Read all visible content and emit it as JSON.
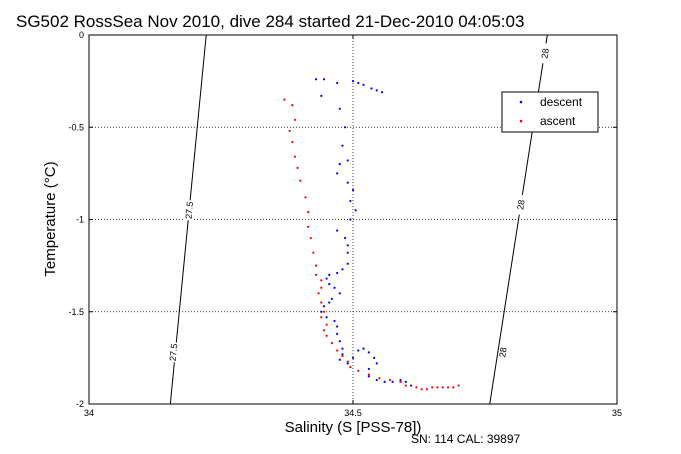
{
  "chart_data": {
    "type": "scatter",
    "title": "SG502 RossSea Nov 2010, dive 284 started 21-Dec-2010 04:05:03",
    "xlabel": "Salinity (S [PSS-78])",
    "ylabel": "Temperature (°C)",
    "xlim": [
      34,
      35
    ],
    "ylim": [
      -2,
      0
    ],
    "x_ticks": [
      34,
      34.5,
      35
    ],
    "y_ticks": [
      0,
      -0.5,
      -1,
      -1.5,
      -2
    ],
    "x_tick_labels": [
      "34",
      "34.5",
      "35"
    ],
    "y_tick_labels": [
      "0",
      "-0.5",
      "-1",
      "-1.5",
      "-2"
    ],
    "grid": true,
    "legend_position": "top-right",
    "footer": "SN: 114  CAL: 39897",
    "isopycnals": [
      {
        "label": "27.5",
        "x_at_ymax": 34.222,
        "x_at_ymin": 34.154,
        "label_positions": [
          [
            34.19,
            -0.95
          ],
          [
            34.16,
            -1.72
          ]
        ]
      },
      {
        "label": "28",
        "x_at_ymax": 34.868,
        "x_at_ymin": 34.759,
        "label_positions": [
          [
            34.864,
            -0.1
          ],
          [
            34.818,
            -0.92
          ],
          [
            34.784,
            -1.72
          ]
        ]
      }
    ],
    "series": [
      {
        "name": "descent",
        "color": "#0000ff",
        "points": [
          [
            34.43,
            -0.24
          ],
          [
            34.445,
            -0.24
          ],
          [
            34.44,
            -0.33
          ],
          [
            34.47,
            -0.26
          ],
          [
            34.5,
            -0.25
          ],
          [
            34.51,
            -0.26
          ],
          [
            34.52,
            -0.27
          ],
          [
            34.535,
            -0.29
          ],
          [
            34.545,
            -0.3
          ],
          [
            34.555,
            -0.31
          ],
          [
            34.475,
            -0.4
          ],
          [
            34.485,
            -0.5
          ],
          [
            34.48,
            -0.6
          ],
          [
            34.49,
            -0.68
          ],
          [
            34.475,
            -0.7
          ],
          [
            34.47,
            -0.75
          ],
          [
            34.49,
            -0.8
          ],
          [
            34.5,
            -0.84
          ],
          [
            34.495,
            -0.9
          ],
          [
            34.505,
            -0.95
          ],
          [
            34.495,
            -1.0
          ],
          [
            34.47,
            -1.06
          ],
          [
            34.485,
            -1.1
          ],
          [
            34.49,
            -1.14
          ],
          [
            34.49,
            -1.18
          ],
          [
            34.49,
            -1.24
          ],
          [
            34.48,
            -1.27
          ],
          [
            34.47,
            -1.29
          ],
          [
            34.455,
            -1.3
          ],
          [
            34.45,
            -1.32
          ],
          [
            34.455,
            -1.35
          ],
          [
            34.465,
            -1.37
          ],
          [
            34.475,
            -1.4
          ],
          [
            34.46,
            -1.43
          ],
          [
            34.455,
            -1.45
          ],
          [
            34.445,
            -1.47
          ],
          [
            34.44,
            -1.5
          ],
          [
            34.45,
            -1.53
          ],
          [
            34.465,
            -1.55
          ],
          [
            34.47,
            -1.58
          ],
          [
            34.47,
            -1.62
          ],
          [
            34.475,
            -1.66
          ],
          [
            34.48,
            -1.7
          ],
          [
            34.48,
            -1.73
          ],
          [
            34.475,
            -1.76
          ],
          [
            34.49,
            -1.78
          ],
          [
            34.5,
            -1.75
          ],
          [
            34.51,
            -1.71
          ],
          [
            34.52,
            -1.7
          ],
          [
            34.53,
            -1.72
          ],
          [
            34.54,
            -1.75
          ],
          [
            34.545,
            -1.78
          ],
          [
            34.53,
            -1.81
          ],
          [
            34.53,
            -1.85
          ],
          [
            34.545,
            -1.87
          ],
          [
            34.56,
            -1.88
          ],
          [
            34.575,
            -1.88
          ],
          [
            34.59,
            -1.87
          ],
          [
            34.6,
            -1.88
          ],
          [
            34.61,
            -1.9
          ]
        ]
      },
      {
        "name": "ascent",
        "color": "#ff0000",
        "points": [
          [
            34.37,
            -0.35
          ],
          [
            34.385,
            -0.38
          ],
          [
            34.39,
            -0.46
          ],
          [
            34.38,
            -0.52
          ],
          [
            34.385,
            -0.58
          ],
          [
            34.39,
            -0.66
          ],
          [
            34.395,
            -0.72
          ],
          [
            34.4,
            -0.79
          ],
          [
            34.41,
            -0.88
          ],
          [
            34.415,
            -0.96
          ],
          [
            34.415,
            -1.04
          ],
          [
            34.42,
            -1.1
          ],
          [
            34.425,
            -1.18
          ],
          [
            34.43,
            -1.25
          ],
          [
            34.43,
            -1.3
          ],
          [
            34.44,
            -1.33
          ],
          [
            34.44,
            -1.37
          ],
          [
            34.435,
            -1.4
          ],
          [
            34.44,
            -1.45
          ],
          [
            34.445,
            -1.5
          ],
          [
            34.44,
            -1.53
          ],
          [
            34.45,
            -1.57
          ],
          [
            34.445,
            -1.6
          ],
          [
            34.45,
            -1.63
          ],
          [
            34.46,
            -1.67
          ],
          [
            34.47,
            -1.71
          ],
          [
            34.48,
            -1.74
          ],
          [
            34.49,
            -1.77
          ],
          [
            34.495,
            -1.8
          ],
          [
            34.51,
            -1.82
          ],
          [
            34.53,
            -1.84
          ],
          [
            34.55,
            -1.86
          ],
          [
            34.57,
            -1.87
          ],
          [
            34.59,
            -1.88
          ],
          [
            34.6,
            -1.9
          ],
          [
            34.62,
            -1.91
          ],
          [
            34.63,
            -1.92
          ],
          [
            34.64,
            -1.92
          ],
          [
            34.65,
            -1.91
          ],
          [
            34.66,
            -1.91
          ],
          [
            34.67,
            -1.91
          ],
          [
            34.68,
            -1.91
          ],
          [
            34.69,
            -1.91
          ],
          [
            34.7,
            -1.9
          ]
        ]
      }
    ]
  }
}
